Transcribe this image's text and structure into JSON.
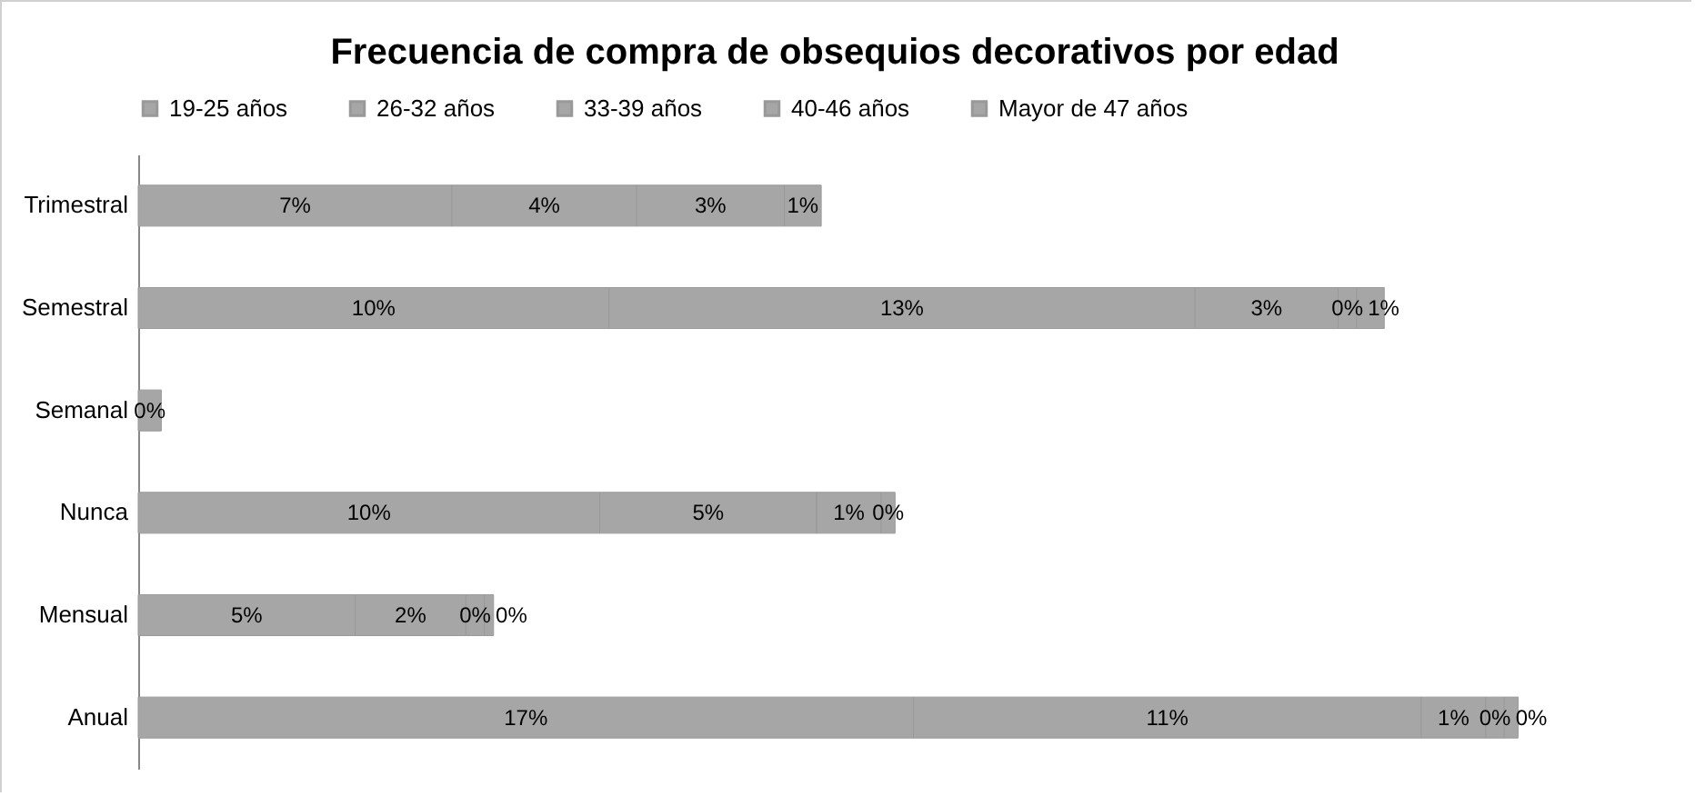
{
  "chart_data": {
    "type": "bar",
    "orientation": "horizontal",
    "stacked": true,
    "title": "Frecuencia de compra de obsequios decorativos por edad",
    "categories": [
      "Trimestral",
      "Semestral",
      "Semanal",
      "Nunca",
      "Mensual",
      "Anual"
    ],
    "tick_labels": "y",
    "legend": "top",
    "series": [
      {
        "name": "19-25 años",
        "color": "#a6a6a6",
        "values": [
          6.8,
          10.2,
          0.5,
          10.0,
          4.7,
          16.8
        ],
        "value_labels": [
          "7%",
          "10%",
          "0%",
          "10%",
          "5%",
          "17%"
        ]
      },
      {
        "name": "26-32 años",
        "color": "#a6a6a6",
        "values": [
          4.0,
          12.7,
          null,
          4.7,
          2.4,
          11.0
        ],
        "value_labels": [
          "4%",
          "13%",
          null,
          "5%",
          "2%",
          "11%"
        ]
      },
      {
        "name": "33-39 años",
        "color": "#a6a6a6",
        "values": [
          3.2,
          3.1,
          null,
          1.4,
          0.4,
          1.4
        ],
        "value_labels": [
          "3%",
          "3%",
          null,
          "1%",
          "0%",
          "1%"
        ]
      },
      {
        "name": "40-46 años",
        "color": "#a6a6a6",
        "values": [
          0.8,
          0.4,
          null,
          0.3,
          0.2,
          0.4
        ],
        "value_labels": [
          "1%",
          "0%",
          null,
          "0%",
          "0%",
          "0%"
        ]
      },
      {
        "name": "Mayor de 47 años",
        "color": "#a6a6a6",
        "values": [
          null,
          0.6,
          null,
          null,
          null,
          0.3
        ],
        "value_labels": [
          null,
          "1%",
          null,
          null,
          null,
          "0%"
        ]
      }
    ]
  }
}
